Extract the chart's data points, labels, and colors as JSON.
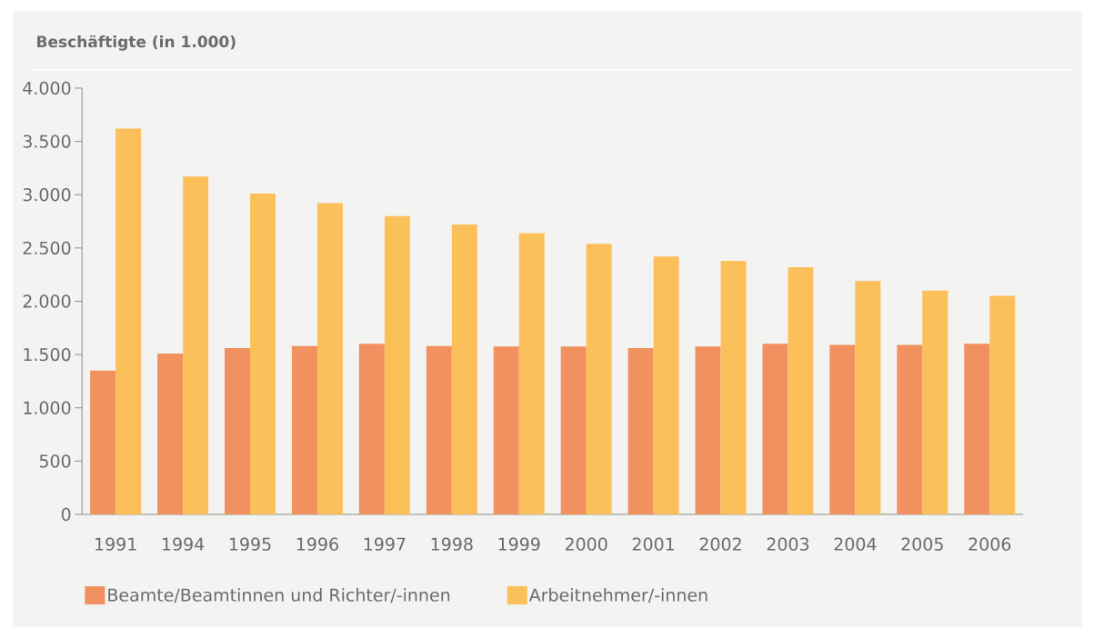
{
  "chart_data": {
    "type": "bar",
    "title": "Beschäftigte (in 1.000)",
    "categories": [
      "1991",
      "1994",
      "1995",
      "1996",
      "1997",
      "1998",
      "1999",
      "2000",
      "2001",
      "2002",
      "2003",
      "2004",
      "2005",
      "2006"
    ],
    "series": [
      {
        "name": "Beamte/Beamtinnen und Richter/-innen",
        "color": "#f0915f",
        "values": [
          1350,
          1510,
          1560,
          1580,
          1600,
          1580,
          1575,
          1575,
          1560,
          1575,
          1600,
          1590,
          1590,
          1600
        ]
      },
      {
        "name": "Arbeitnehmer/-innen",
        "color": "#fcc05a",
        "values": [
          3620,
          3170,
          3010,
          2920,
          2800,
          2720,
          2640,
          2540,
          2420,
          2380,
          2320,
          2190,
          2100,
          2050
        ]
      }
    ],
    "ylim": [
      0,
      4000
    ],
    "yticks": [
      {
        "value": 0,
        "label": "0"
      },
      {
        "value": 500,
        "label": "500"
      },
      {
        "value": 1000,
        "label": "1.000"
      },
      {
        "value": 1500,
        "label": "1.500"
      },
      {
        "value": 2000,
        "label": "2.000"
      },
      {
        "value": 2500,
        "label": "2.500"
      },
      {
        "value": 3000,
        "label": "3.000"
      },
      {
        "value": 3500,
        "label": "3.500"
      },
      {
        "value": 4000,
        "label": "4.000"
      }
    ],
    "grid": false,
    "legend": "bottom left"
  }
}
